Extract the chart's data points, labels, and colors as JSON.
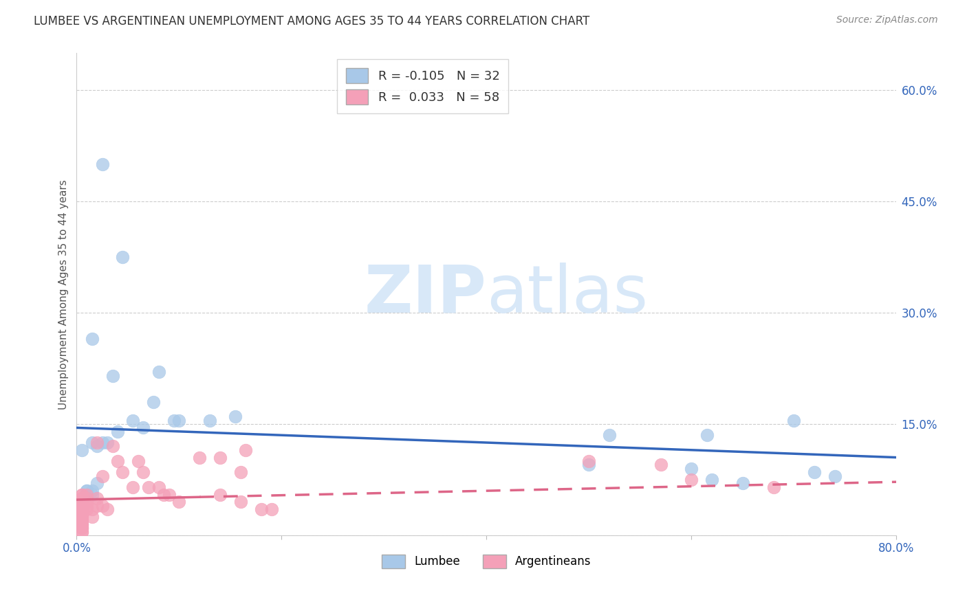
{
  "title": "LUMBEE VS ARGENTINEAN UNEMPLOYMENT AMONG AGES 35 TO 44 YEARS CORRELATION CHART",
  "source": "Source: ZipAtlas.com",
  "ylabel": "Unemployment Among Ages 35 to 44 years",
  "xlim": [
    0.0,
    0.8
  ],
  "ylim": [
    0.0,
    0.65
  ],
  "yticks": [
    0.0,
    0.15,
    0.3,
    0.45,
    0.6
  ],
  "ytick_labels": [
    "",
    "15.0%",
    "30.0%",
    "45.0%",
    "60.0%"
  ],
  "lumbee_R": -0.105,
  "lumbee_N": 32,
  "argentinean_R": 0.033,
  "argentinean_N": 58,
  "lumbee_color": "#a8c8e8",
  "argentinean_color": "#f4a0b8",
  "lumbee_line_color": "#3366bb",
  "argentinean_line_color": "#dd6688",
  "lumbee_line_start": 0.145,
  "lumbee_line_end": 0.105,
  "argentinean_line_start": 0.048,
  "argentinean_line_end": 0.072,
  "argentinean_line_solid_end": 0.12,
  "background_color": "#ffffff",
  "watermark_zip": "ZIP",
  "watermark_atlas": "atlas",
  "watermark_color": "#d8e8f8",
  "lumbee_x": [
    0.015,
    0.025,
    0.035,
    0.045,
    0.04,
    0.055,
    0.065,
    0.075,
    0.08,
    0.095,
    0.1,
    0.13,
    0.155,
    0.025,
    0.03,
    0.015,
    0.02,
    0.01,
    0.015,
    0.02,
    0.01,
    0.015,
    0.5,
    0.52,
    0.6,
    0.62,
    0.615,
    0.7,
    0.72,
    0.74,
    0.65,
    0.005
  ],
  "lumbee_y": [
    0.265,
    0.5,
    0.215,
    0.375,
    0.14,
    0.155,
    0.145,
    0.18,
    0.22,
    0.155,
    0.155,
    0.155,
    0.16,
    0.125,
    0.125,
    0.125,
    0.12,
    0.06,
    0.06,
    0.07,
    0.06,
    0.055,
    0.095,
    0.135,
    0.09,
    0.075,
    0.135,
    0.155,
    0.085,
    0.08,
    0.07,
    0.115
  ],
  "argentinean_x": [
    0.005,
    0.005,
    0.005,
    0.005,
    0.005,
    0.005,
    0.005,
    0.005,
    0.005,
    0.005,
    0.005,
    0.005,
    0.005,
    0.005,
    0.005,
    0.005,
    0.005,
    0.005,
    0.005,
    0.005,
    0.005,
    0.005,
    0.01,
    0.01,
    0.01,
    0.01,
    0.01,
    0.015,
    0.015,
    0.02,
    0.02,
    0.02,
    0.025,
    0.025,
    0.03,
    0.035,
    0.04,
    0.045,
    0.055,
    0.06,
    0.07,
    0.065,
    0.08,
    0.085,
    0.09,
    0.1,
    0.12,
    0.14,
    0.14,
    0.16,
    0.16,
    0.165,
    0.18,
    0.19,
    0.5,
    0.57,
    0.6,
    0.68
  ],
  "argentinean_y": [
    0.055,
    0.055,
    0.05,
    0.05,
    0.045,
    0.045,
    0.04,
    0.04,
    0.035,
    0.035,
    0.03,
    0.03,
    0.025,
    0.025,
    0.02,
    0.02,
    0.015,
    0.015,
    0.01,
    0.01,
    0.005,
    0.005,
    0.055,
    0.05,
    0.045,
    0.04,
    0.035,
    0.035,
    0.025,
    0.125,
    0.05,
    0.04,
    0.08,
    0.04,
    0.035,
    0.12,
    0.1,
    0.085,
    0.065,
    0.1,
    0.065,
    0.085,
    0.065,
    0.055,
    0.055,
    0.045,
    0.105,
    0.105,
    0.055,
    0.085,
    0.045,
    0.115,
    0.035,
    0.035,
    0.1,
    0.095,
    0.075,
    0.065
  ]
}
